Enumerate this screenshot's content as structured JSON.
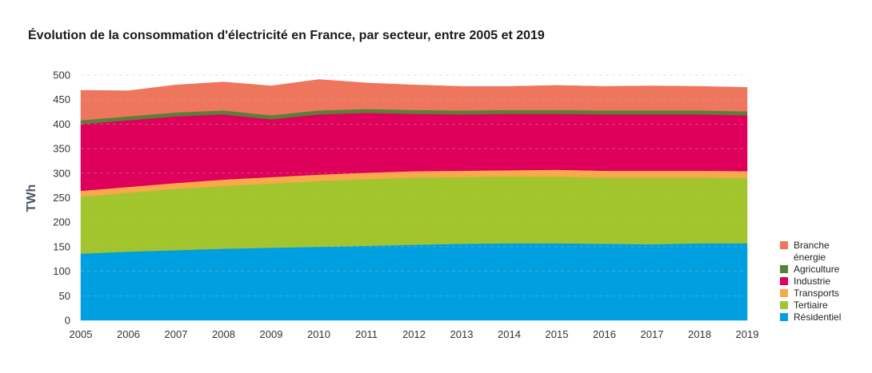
{
  "chart_data": {
    "type": "area",
    "title": "Évolution de la consommation d'électricité en France, par secteur, entre 2005 et 2019",
    "xlabel": "",
    "ylabel": "TWh",
    "ylim": [
      0,
      500
    ],
    "yticks": [
      0,
      50,
      100,
      150,
      200,
      250,
      300,
      350,
      400,
      450,
      500
    ],
    "grid": true,
    "stacked": true,
    "legend_position": "right",
    "x": [
      "2005",
      "2006",
      "2007",
      "2008",
      "2009",
      "2010",
      "2011",
      "2012",
      "2013",
      "2014",
      "2015",
      "2016",
      "2017",
      "2018",
      "2019"
    ],
    "series": [
      {
        "name": "Résidentiel",
        "color": "#009fdf",
        "values": [
          136,
          140,
          143,
          146,
          148,
          150,
          152,
          154,
          156,
          157,
          157,
          156,
          155,
          157,
          157
        ]
      },
      {
        "name": "Tertiaire",
        "color": "#a2c42c",
        "values": [
          116,
          120,
          125,
          128,
          131,
          134,
          136,
          137,
          136,
          136,
          136,
          135,
          136,
          134,
          133
        ]
      },
      {
        "name": "Transports",
        "color": "#f9a94b",
        "values": [
          12,
          12,
          12,
          13,
          13,
          13,
          13,
          13,
          13,
          13,
          14,
          14,
          14,
          14,
          14
        ]
      },
      {
        "name": "Industrie",
        "color": "#de005a",
        "values": [
          136,
          136,
          136,
          133,
          118,
          123,
          122,
          117,
          115,
          115,
          114,
          115,
          115,
          115,
          114
        ]
      },
      {
        "name": "Agriculture",
        "color": "#5a7f3a",
        "values": [
          8,
          8,
          8,
          8,
          8,
          8,
          8,
          8,
          8,
          8,
          8,
          8,
          8,
          8,
          8
        ]
      },
      {
        "name": "Branche énergie",
        "color": "#ee765c",
        "values": [
          61,
          52,
          56,
          58,
          60,
          63,
          53,
          51,
          49,
          48,
          50,
          49,
          50,
          49,
          49
        ]
      }
    ]
  },
  "legend": {
    "items": [
      {
        "label": "Branche énergie",
        "color": "#ee765c"
      },
      {
        "label": "Agriculture",
        "color": "#5a7f3a"
      },
      {
        "label": "Industrie",
        "color": "#de005a"
      },
      {
        "label": "Transports",
        "color": "#f9a94b"
      },
      {
        "label": "Tertiaire",
        "color": "#a2c42c"
      },
      {
        "label": "Résidentiel",
        "color": "#009fdf"
      }
    ]
  }
}
